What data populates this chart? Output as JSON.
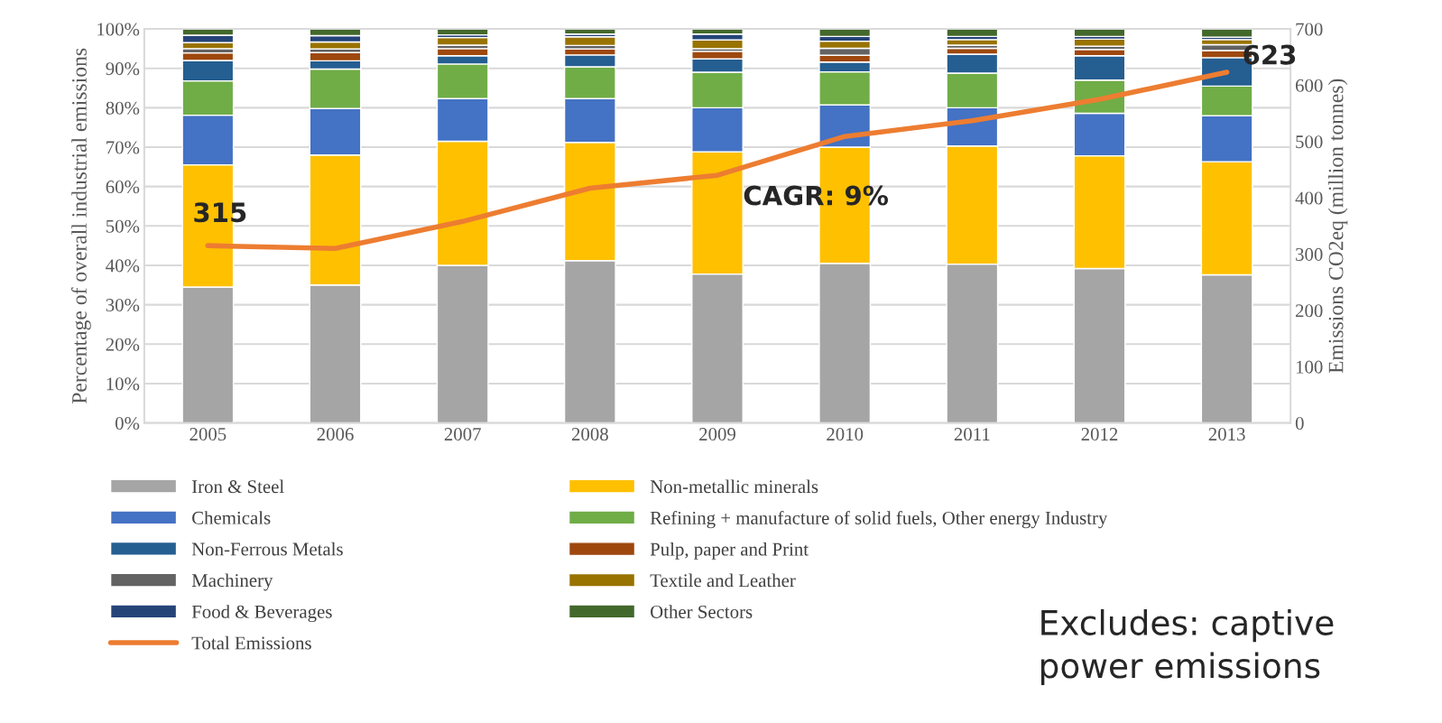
{
  "chart_data": {
    "type": "bar",
    "stacked": true,
    "categories": [
      "2005",
      "2006",
      "2007",
      "2008",
      "2009",
      "2010",
      "2011",
      "2012",
      "2013"
    ],
    "ylabel": "Percentage of overall industrial emissions",
    "y2label": "Emissions CO2eq (million tonnes)",
    "ylim": [
      0,
      100
    ],
    "yticks": [
      {
        "value": 0,
        "label": "0%"
      },
      {
        "value": 10,
        "label": "10%"
      },
      {
        "value": 20,
        "label": "20%"
      },
      {
        "value": 30,
        "label": "30%"
      },
      {
        "value": 40,
        "label": "40%"
      },
      {
        "value": 50,
        "label": "50%"
      },
      {
        "value": 60,
        "label": "60%"
      },
      {
        "value": 70,
        "label": "70%"
      },
      {
        "value": 80,
        "label": "80%"
      },
      {
        "value": 90,
        "label": "90%"
      },
      {
        "value": 100,
        "label": "100%"
      }
    ],
    "y2lim": [
      0,
      700
    ],
    "y2ticks": [
      0,
      100,
      200,
      300,
      400,
      500,
      600,
      700
    ],
    "grid": "y",
    "legend": "bottom",
    "series": [
      {
        "name": "Iron & Steel",
        "color": "#a5a5a5",
        "values": [
          34.5,
          35,
          40,
          41.2,
          37.8,
          40.5,
          40.3,
          39.2,
          37.6
        ]
      },
      {
        "name": "Non-metallic minerals",
        "color": "#ffc000",
        "values": [
          31,
          33,
          31.5,
          30,
          31,
          29.5,
          30,
          28.6,
          28.7
        ]
      },
      {
        "name": "Chemicals",
        "color": "#4472c4",
        "values": [
          12.6,
          11.8,
          10.8,
          11.1,
          11.2,
          10.7,
          9.7,
          10.8,
          11.7
        ]
      },
      {
        "name": "Refining + manufacture of solid fuels, Other energy Industry",
        "color": "#70ad47",
        "values": [
          8.7,
          10,
          8.8,
          8.1,
          9,
          8.4,
          8.8,
          8.4,
          7.5
        ]
      },
      {
        "name": "Non-Ferrous Metals",
        "color": "#255e91",
        "values": [
          5.2,
          2.1,
          2.1,
          3,
          3.4,
          2.5,
          4.8,
          6.2,
          7.2
        ]
      },
      {
        "name": "Pulp, paper and Print",
        "color": "#9e480e",
        "values": [
          1.9,
          2.1,
          1.8,
          1.5,
          1.9,
          1.7,
          1.5,
          1.6,
          1.8
        ]
      },
      {
        "name": "Machinery",
        "color": "#636363",
        "values": [
          1.1,
          0.9,
          0.9,
          0.9,
          0.7,
          1.8,
          0.8,
          0.8,
          1.5
        ]
      },
      {
        "name": "Textile and Leather",
        "color": "#997300",
        "values": [
          1.5,
          1.8,
          1.9,
          2.2,
          2.2,
          1.8,
          1.4,
          1.8,
          1.3
        ]
      },
      {
        "name": "Food & Beverages",
        "color": "#264478",
        "values": [
          1.9,
          1.6,
          0.7,
          0.7,
          1.5,
          1.2,
          0.8,
          0.7,
          0.6
        ]
      },
      {
        "name": "Other Sectors",
        "color": "#43682b",
        "values": [
          1.6,
          1.7,
          1.5,
          1.3,
          1.3,
          1.9,
          1.9,
          1.9,
          2.1
        ]
      },
      {
        "name": "Total Emissions",
        "type": "line",
        "axis": "y2",
        "color": "#ed7d31",
        "values": [
          315,
          310,
          358,
          417,
          440,
          509,
          537,
          575,
          623
        ]
      }
    ],
    "annotations": [
      "315",
      "623",
      "CAGR: 9%",
      "Excludes: captive power emissions"
    ]
  }
}
